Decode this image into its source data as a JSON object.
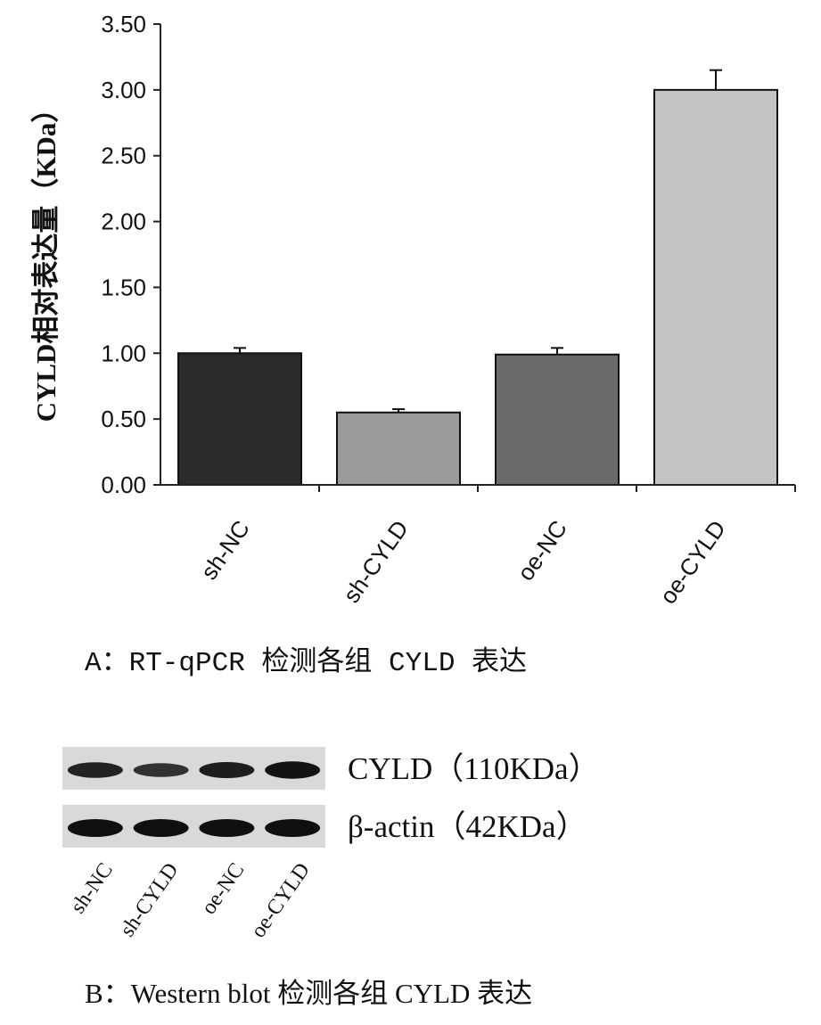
{
  "chart_data": {
    "type": "bar",
    "categories": [
      "sh-NC",
      "sh-CYLD",
      "oe-NC",
      "oe-CYLD"
    ],
    "values": [
      1.0,
      0.55,
      0.99,
      3.0
    ],
    "errors": [
      0.04,
      0.025,
      0.05,
      0.15
    ],
    "bar_colors": [
      "#2b2b2b",
      "#9a9a9a",
      "#6a6a6a",
      "#c4c4c4"
    ],
    "ylabel": "CYLD相对表达量（KDa）",
    "ylim": [
      0,
      3.5
    ],
    "yticks": [
      "0.00",
      "0.50",
      "1.00",
      "1.50",
      "2.00",
      "2.50",
      "3.00",
      "3.50"
    ],
    "grid": false,
    "caption": "A：RT-qPCR 检测各组 CYLD 表达"
  },
  "blot": {
    "rows": [
      {
        "label": "CYLD（110KDa）",
        "intensity": [
          0.75,
          0.55,
          0.8,
          0.95
        ]
      },
      {
        "label": "β-actin（42KDa）",
        "intensity": [
          1.0,
          1.0,
          1.0,
          1.0
        ]
      }
    ],
    "lanes": [
      "sh-NC",
      "sh-CYLD",
      "oe-NC",
      "oe-CYLD"
    ],
    "caption": "B：Western blot 检测各组 CYLD 表达"
  }
}
